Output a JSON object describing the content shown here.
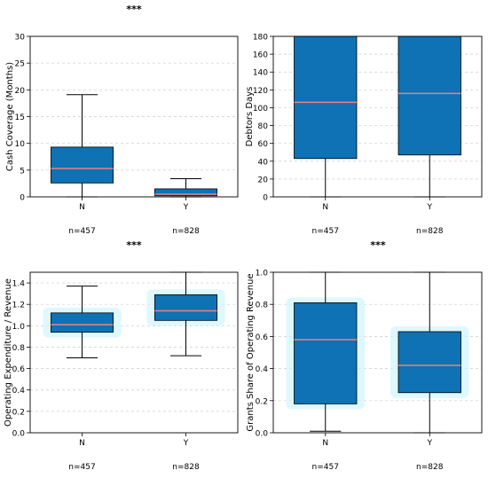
{
  "colors": {
    "box_fill": "#0e72b5",
    "median": "#f08080",
    "grid": "#cccccc",
    "glow": "#c8f4ff",
    "axis": "#000000"
  },
  "chart_data": [
    {
      "type": "box",
      "title": "***",
      "ylabel": "Cash Coverage (Months)",
      "ylim": [
        0,
        30
      ],
      "yticks": [
        0,
        5,
        10,
        15,
        20,
        25,
        30
      ],
      "categories": [
        "N",
        "Y"
      ],
      "counts": [
        "n=457",
        "n=828"
      ],
      "grid": true,
      "boxes": [
        {
          "whislo": 0,
          "q1": 2.6,
          "med": 5.3,
          "q3": 9.3,
          "whishi": 19.1
        },
        {
          "whislo": 0,
          "q1": 0.2,
          "med": 0.5,
          "q3": 1.5,
          "whishi": 3.4
        }
      ]
    },
    {
      "type": "box",
      "title": "",
      "ylabel": "Debtors Days",
      "ylim": [
        0,
        180
      ],
      "yticks": [
        0,
        20,
        40,
        60,
        80,
        100,
        120,
        140,
        160,
        180
      ],
      "categories": [
        "N",
        "Y"
      ],
      "counts": [
        "n=457",
        "n=828"
      ],
      "grid": true,
      "boxes": [
        {
          "whislo": 0,
          "q1": 43,
          "med": 106,
          "q3": 180,
          "whishi": 180
        },
        {
          "whislo": 0,
          "q1": 47,
          "med": 116,
          "q3": 180,
          "whishi": 180
        }
      ]
    },
    {
      "type": "box",
      "title": "***",
      "ylabel": "Operating Expenditure / Revenue",
      "ylim": [
        0,
        1.5
      ],
      "yticks": [
        0.0,
        0.2,
        0.4,
        0.6,
        0.8,
        1.0,
        1.2,
        1.4
      ],
      "categories": [
        "N",
        "Y"
      ],
      "counts": [
        "n=457",
        "n=828"
      ],
      "grid": true,
      "glow": true,
      "boxes": [
        {
          "whislo": 0.7,
          "q1": 0.94,
          "med": 1.01,
          "q3": 1.12,
          "whishi": 1.37
        },
        {
          "whislo": 0.72,
          "q1": 1.05,
          "med": 1.14,
          "q3": 1.29,
          "whishi": 1.5
        }
      ]
    },
    {
      "type": "box",
      "title": "***",
      "ylabel": "Grants Share of Operating Revenue",
      "ylim": [
        0,
        1.0
      ],
      "yticks": [
        0.0,
        0.2,
        0.4,
        0.6,
        0.8,
        1.0
      ],
      "categories": [
        "N",
        "Y"
      ],
      "counts": [
        "n=457",
        "n=828"
      ],
      "grid": true,
      "glow": true,
      "boxes": [
        {
          "whislo": 0.01,
          "q1": 0.18,
          "med": 0.58,
          "q3": 0.81,
          "whishi": 1.0
        },
        {
          "whislo": 0.0,
          "q1": 0.25,
          "med": 0.42,
          "q3": 0.63,
          "whishi": 1.0
        }
      ]
    }
  ]
}
